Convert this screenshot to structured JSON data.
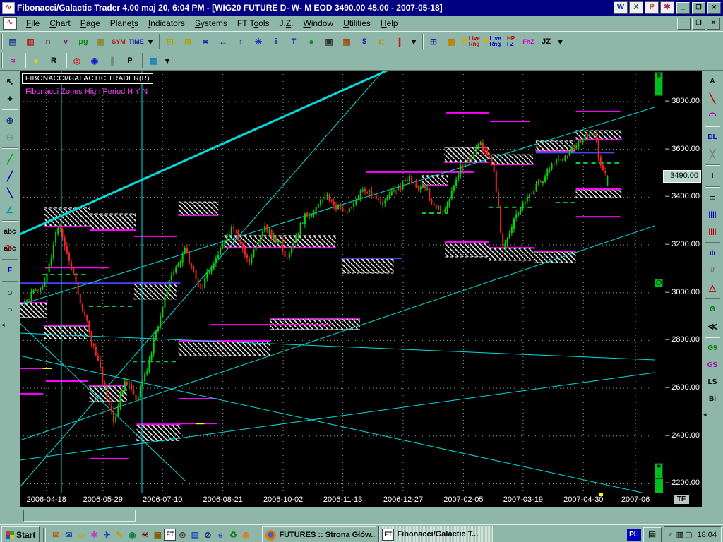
{
  "window": {
    "title": "Fibonacci/Galactic Trader 4.00 maj 20,  6:04 PM - [WIG20 FUTURE D- W- M EOD  3490.00     45.00 - 2007-05-18]",
    "controls": {
      "minimize": "_",
      "restore": "❐",
      "close": "✕"
    },
    "office_icons": [
      {
        "name": "word-icon",
        "letter": "W",
        "color": "#1a3c8f"
      },
      {
        "name": "excel-icon",
        "letter": "X",
        "color": "#1d7044"
      },
      {
        "name": "powerpoint-icon",
        "letter": "P",
        "color": "#c3432b"
      },
      {
        "name": "graphics-app-icon",
        "letter": "✱",
        "color": "#b03060"
      }
    ]
  },
  "menubar": {
    "items": [
      {
        "label": "File",
        "u": 0
      },
      {
        "label": "Chart",
        "u": 0
      },
      {
        "label": "Page",
        "u": 0
      },
      {
        "label": "Planets",
        "u": 5
      },
      {
        "label": "Indicators",
        "u": 0
      },
      {
        "label": "Systems",
        "u": 0
      },
      {
        "label": "FT Tools",
        "u": 4
      },
      {
        "label": "J.Z.",
        "u": 2
      },
      {
        "label": "Window",
        "u": 0
      },
      {
        "label": "Utilities",
        "u": 0
      },
      {
        "label": "Help",
        "u": 0
      }
    ],
    "mdi_controls": {
      "minimize": "─",
      "restore": "❐",
      "close": "✕"
    }
  },
  "toolbar_row1": [
    {
      "group": [
        {
          "name": "new-chart-icon",
          "glyph": "▤",
          "color": "#24418c"
        },
        {
          "name": "open-chart-icon",
          "glyph": "▥",
          "color": "#b02020"
        },
        {
          "name": "scale-n-icon",
          "label": "n",
          "color": "#8c1a1a"
        },
        {
          "name": "scale-v-icon",
          "label": "v",
          "color": "#7a1a8c"
        },
        {
          "name": "page-icon",
          "label": "pg",
          "color": "#108c10"
        },
        {
          "name": "quote-grid-icon",
          "glyph": "▦",
          "color": "#8c8c30"
        },
        {
          "name": "symbol-icon",
          "label": "SYM",
          "color": "#b02020"
        },
        {
          "name": "time-icon",
          "label": "TIME",
          "color": "#2020b0"
        },
        {
          "name": "more-tools-caret-icon",
          "glyph": "▾",
          "color": "#000000"
        }
      ]
    },
    {
      "group": [
        {
          "name": "cascade-windows-icon",
          "glyph": "⊡",
          "color": "#b0a000"
        },
        {
          "name": "new-window-icon",
          "glyph": "⊞",
          "color": "#b0a000"
        },
        {
          "name": "compress-bars-icon",
          "glyph": "≍",
          "color": "#2020b0"
        },
        {
          "name": "expand-bars-icon",
          "glyph": "↔",
          "color": "#2020b0"
        },
        {
          "name": "flip-chart-icon",
          "glyph": "↕",
          "color": "#2020b0"
        },
        {
          "name": "asterisk-icon",
          "glyph": "✳",
          "color": "#2020b0"
        },
        {
          "name": "info-icon",
          "label": "i",
          "color": "#2020b0"
        },
        {
          "name": "text-tool-icon",
          "label": "T",
          "color": "#2020b0"
        },
        {
          "name": "traffic-light-icon",
          "glyph": "●",
          "color": "#109010"
        },
        {
          "name": "print-icon",
          "glyph": "▣",
          "color": "#333333"
        },
        {
          "name": "data-calendar-icon",
          "glyph": "▦",
          "color": "#a05010"
        },
        {
          "name": "dollar-icon",
          "label": "$",
          "color": "#2020b0"
        },
        {
          "name": "ruler-icon",
          "glyph": "⊏",
          "color": "#b09000"
        },
        {
          "name": "candle-style-icon",
          "glyph": "❙",
          "color": "#b02020"
        },
        {
          "name": "candle-caret-icon",
          "glyph": "▾",
          "color": "#000000"
        }
      ]
    },
    {
      "group": [
        {
          "name": "chart-windows-icon",
          "glyph": "⊞",
          "color": "#2020b0"
        },
        {
          "name": "color-grid-icon",
          "glyph": "▦",
          "color": "#c08000"
        },
        {
          "name": "live-range-red-icon",
          "glyph": "⚑",
          "color": "#d0b000",
          "lines": [
            "Live",
            "Rng"
          ],
          "lines_colors": [
            "#c00000",
            "#c00000"
          ]
        },
        {
          "name": "live-range-blue-icon",
          "glyph": "⚑",
          "color": "#d0b000",
          "lines": [
            "Live",
            "Rng"
          ],
          "lines_colors": [
            "#0000c0",
            "#0000c0"
          ]
        },
        {
          "name": "hp-fz-icon",
          "lines": [
            "HP",
            "FZ"
          ],
          "lines_colors": [
            "#c00000",
            "#0000c0"
          ]
        },
        {
          "name": "fhz-icon",
          "label": "FhZ",
          "color": "#d000d0"
        },
        {
          "name": "jz-icon",
          "label": "JZ",
          "color": "#000000"
        },
        {
          "name": "jz-caret-icon",
          "glyph": "▾",
          "color": "#000000"
        }
      ]
    }
  ],
  "toolbar_row2": [
    {
      "group": [
        {
          "name": "biorhythm-icon",
          "glyph": "≈",
          "color": "#cc00cc"
        }
      ]
    },
    {
      "group": [
        {
          "name": "planet-line-icon",
          "glyph": "●",
          "color": "#d8d800"
        },
        {
          "name": "planet-r-icon",
          "label": "R",
          "color": "#000000"
        }
      ]
    },
    {
      "group": [
        {
          "name": "target-icon",
          "glyph": "◎",
          "color": "#cc2020"
        },
        {
          "name": "aspect-circle-icon",
          "glyph": "◉",
          "color": "#2020cc"
        },
        {
          "name": "aspect-lines-icon",
          "glyph": "∥",
          "color": "#777777"
        },
        {
          "name": "retrograde-icon",
          "label": "P",
          "color": "#000000"
        }
      ]
    },
    {
      "group": [
        {
          "name": "grid-style-icon",
          "glyph": "▦",
          "color": "#2080c0"
        },
        {
          "name": "grid-caret-icon",
          "glyph": "▾",
          "color": "#000000"
        }
      ]
    }
  ],
  "left_toolbar": {
    "items": [
      {
        "name": "pointer-icon",
        "glyph": "↖",
        "color": "#000000"
      },
      {
        "name": "crosshair-icon",
        "glyph": "+",
        "color": "#000000"
      },
      {
        "name": "zoom-in-icon",
        "glyph": "⊕",
        "color": "#204080"
      },
      {
        "name": "zoom-out-icon",
        "glyph": "⊖",
        "color": "#607060",
        "disabled": true
      },
      {
        "name": "trend-line-green-icon",
        "glyph": "╱",
        "color": "#00b000"
      },
      {
        "name": "trend-line-blue-icon",
        "glyph": "╱",
        "color": "#0000c0"
      },
      {
        "name": "trend-line-down-icon",
        "glyph": "╲",
        "color": "#0000c0"
      },
      {
        "name": "angle-tool-icon",
        "glyph": "∠",
        "color": "#00a0a0"
      },
      {
        "name": "text-label-icon",
        "label": "abc",
        "color": "#000000"
      },
      {
        "name": "delete-text-icon",
        "label": "abc",
        "color": "#000000",
        "strike": true
      },
      {
        "name": "fibonacci-tool-icon",
        "label": "F",
        "color": "#0000c0"
      },
      {
        "name": "circle-tool-icon",
        "glyph": "○",
        "color": "#000000"
      },
      {
        "name": "ellipse-tool-icon",
        "glyph": "○",
        "color": "#000000",
        "squash": true
      }
    ],
    "scroll_arrow": "◂"
  },
  "right_toolbar": {
    "items": [
      {
        "name": "angles-a-icon",
        "label": "A",
        "color": "#000000"
      },
      {
        "name": "trend-pencil-icon",
        "glyph": "╲",
        "color": "#c00000"
      },
      {
        "name": "arc-tool-icon",
        "glyph": "◠",
        "color": "#c000c0"
      },
      {
        "name": "dl-tool-icon",
        "label": "DL",
        "color": "#0000c0"
      },
      {
        "name": "delete-line-icon",
        "glyph": "╳",
        "color": "#808080"
      },
      {
        "name": "info-line-icon",
        "label": "I",
        "color": "#000000"
      },
      {
        "name": "horizontal-lines-icon",
        "glyph": "≡",
        "color": "#000000"
      },
      {
        "name": "vertical-lines-blue-icon",
        "label": "||||",
        "color": "#0000c0"
      },
      {
        "name": "vertical-lines-red-icon",
        "label": "||||",
        "color": "#c00000"
      },
      {
        "name": "histogram-icon",
        "label": "ılı",
        "color": "#0000c0"
      },
      {
        "name": "parallel-lines-icon",
        "label": "//",
        "color": "#707070"
      },
      {
        "name": "triangle-tool-icon",
        "glyph": "△",
        "color": "#c00000"
      },
      {
        "name": "gann-levels-icon",
        "label": "G",
        "color": "#008000"
      },
      {
        "name": "fan-lines-icon",
        "glyph": "≪",
        "color": "#000000"
      },
      {
        "name": "g9-icon",
        "label": "G9",
        "color": "#008000"
      },
      {
        "name": "gs-icon",
        "label": "GS",
        "color": "#a000a0"
      },
      {
        "name": "ls-icon",
        "label": "LS",
        "color": "#000000"
      },
      {
        "name": "bi-icon",
        "label": "Bi",
        "color": "#000000"
      }
    ],
    "scroll_arrow": "◂"
  },
  "chart": {
    "overlay_title": "FIBONACCI/GALACTIC TRADER(R)",
    "overlay_subtitle": "Fibonacci Zones High Period H Y N",
    "tf_label": "TF"
  },
  "scrollbar": {
    "top_buttons": [
      "⊠",
      "↑",
      "↕"
    ],
    "middle_button": "◯",
    "bottom_buttons": [
      "✱",
      "↓"
    ]
  },
  "chart_data": {
    "type": "candlestick",
    "symbol": "WIG20 FUTURE",
    "last_price": 3490.0,
    "change": 45.0,
    "last_date": "2007-05-18",
    "price_top": 3930,
    "price_bottom": 2160,
    "y_ticks": [
      3800,
      3600,
      3400,
      3200,
      3000,
      2800,
      2600,
      2400,
      2200
    ],
    "current_price": 3490.0,
    "x_ticks": [
      {
        "label": "2006-04-18",
        "f": 0.042
      },
      {
        "label": "2006-05-29",
        "f": 0.131
      },
      {
        "label": "2006-07-10",
        "f": 0.225
      },
      {
        "label": "2006-08-21",
        "f": 0.32
      },
      {
        "label": "2006-10-02",
        "f": 0.415
      },
      {
        "label": "2006-11-13",
        "f": 0.509
      },
      {
        "label": "2006-12-27",
        "f": 0.604
      },
      {
        "label": "2007-02-05",
        "f": 0.699
      },
      {
        "label": "2007-03-19",
        "f": 0.793
      },
      {
        "label": "2007-04-30",
        "f": 0.888
      },
      {
        "label": "2007-06",
        "f": 0.97
      }
    ],
    "seed": 20070518,
    "anchors": [
      [
        0,
        2960
      ],
      [
        10,
        3080
      ],
      [
        15,
        3290
      ],
      [
        22,
        3050
      ],
      [
        27,
        2890
      ],
      [
        33,
        2700
      ],
      [
        40,
        2460
      ],
      [
        45,
        2640
      ],
      [
        50,
        2550
      ],
      [
        57,
        2760
      ],
      [
        65,
        3060
      ],
      [
        72,
        3180
      ],
      [
        78,
        3000
      ],
      [
        85,
        3140
      ],
      [
        93,
        3280
      ],
      [
        100,
        3120
      ],
      [
        108,
        3270
      ],
      [
        115,
        3200
      ],
      [
        118,
        3130
      ],
      [
        125,
        3320
      ],
      [
        135,
        3390
      ],
      [
        145,
        3330
      ],
      [
        152,
        3450
      ],
      [
        160,
        3360
      ],
      [
        172,
        3480
      ],
      [
        180,
        3420
      ],
      [
        188,
        3330
      ],
      [
        195,
        3520
      ],
      [
        205,
        3620
      ],
      [
        210,
        3540
      ],
      [
        215,
        3180
      ],
      [
        222,
        3360
      ],
      [
        230,
        3460
      ],
      [
        240,
        3570
      ],
      [
        250,
        3640
      ],
      [
        256,
        3680
      ],
      [
        259,
        3520
      ],
      [
        262,
        3490
      ]
    ],
    "zones": [
      [
        0.039,
        0.111,
        3280,
        3354,
        "bottom"
      ],
      [
        0.111,
        0.183,
        3265,
        3330,
        "bottom"
      ],
      [
        0.0,
        0.042,
        2896,
        2955,
        "top"
      ],
      [
        0.039,
        0.109,
        2807,
        2860,
        "top"
      ],
      [
        0.109,
        0.169,
        2544,
        2609,
        "top"
      ],
      [
        0.184,
        0.253,
        2381,
        2446,
        "top"
      ],
      [
        0.18,
        0.247,
        2973,
        3038,
        "top"
      ],
      [
        0.25,
        0.313,
        3327,
        3380,
        "bottom"
      ],
      [
        0.322,
        0.498,
        3191,
        3239,
        "bottom"
      ],
      [
        0.25,
        0.394,
        2736,
        2795,
        "top"
      ],
      [
        0.394,
        0.536,
        2846,
        2890,
        "top"
      ],
      [
        0.507,
        0.589,
        3082,
        3141,
        "top"
      ],
      [
        0.633,
        0.674,
        3451,
        3490,
        "bottom"
      ],
      [
        0.669,
        0.739,
        3549,
        3608,
        "bottom"
      ],
      [
        0.744,
        0.809,
        3540,
        3578,
        "bottom"
      ],
      [
        0.813,
        0.874,
        3593,
        3635,
        "bottom"
      ],
      [
        0.876,
        0.948,
        3643,
        3679,
        "bottom"
      ],
      [
        0.876,
        0.948,
        3398,
        3431,
        "top"
      ],
      [
        0.67,
        0.739,
        3150,
        3209,
        "top"
      ],
      [
        0.739,
        0.811,
        3135,
        3185,
        "top"
      ],
      [
        0.811,
        0.876,
        3126,
        3171,
        "top"
      ]
    ],
    "magenta_levels": [
      [
        0.0,
        0.037,
        2683
      ],
      [
        0.041,
        0.108,
        2630
      ],
      [
        0.0,
        0.037,
        2577
      ],
      [
        0.111,
        0.171,
        2305
      ],
      [
        0.25,
        0.311,
        2452
      ],
      [
        0.25,
        0.311,
        2556
      ],
      [
        0.672,
        0.739,
        3753
      ],
      [
        0.741,
        0.804,
        3717
      ],
      [
        0.876,
        0.946,
        3759
      ],
      [
        0.876,
        0.946,
        3318
      ],
      [
        0.18,
        0.247,
        3236
      ],
      [
        0.04,
        0.14,
        3105
      ],
      [
        0.545,
        0.715,
        3505
      ],
      [
        0.3,
        0.49,
        2866
      ]
    ],
    "green_dashed_levels": [
      [
        0.036,
        0.109,
        3076
      ],
      [
        0.109,
        0.178,
        2943
      ],
      [
        0.178,
        0.25,
        2712
      ],
      [
        0.633,
        0.674,
        3333
      ],
      [
        0.739,
        0.811,
        3357
      ],
      [
        0.876,
        0.946,
        3543
      ],
      [
        0.844,
        0.878,
        3377
      ]
    ],
    "blue_levels": [
      [
        0.813,
        0.937,
        3586
      ],
      [
        0.0,
        0.253,
        3040
      ],
      [
        0.507,
        0.602,
        3144
      ]
    ],
    "yellow_levels": [
      [
        0.277,
        0.291,
        2452
      ],
      [
        0.036,
        0.05,
        2683
      ]
    ],
    "trend_lines": [
      [
        0,
        232,
        520,
        0,
        3
      ],
      [
        0,
        332,
        899,
        52,
        1
      ],
      [
        0,
        372,
        899,
        410,
        1
      ],
      [
        0,
        404,
        899,
        602,
        1
      ],
      [
        0,
        552,
        899,
        428,
        1
      ],
      [
        0,
        524,
        899,
        220,
        1
      ],
      [
        0,
        590,
        515,
        0,
        1
      ],
      [
        0,
        358,
        235,
        582,
        1
      ]
    ],
    "vertical_lines": [
      59,
      173
    ],
    "axis_marker_f": 0.915,
    "colors": {
      "up": "#00d900",
      "down": "#ff2222",
      "grid": "#8e9e9a",
      "hatch": "#ffffff",
      "magenta": "#ff00ff",
      "green_dash": "#00cc33",
      "blue": "#4444ff",
      "cyan": "#00dcdc",
      "yellow": "#ffff00",
      "background": "#000000"
    }
  },
  "taskbar": {
    "start_label": "Start",
    "quicklaunch": [
      {
        "name": "outlook-icon",
        "glyph": "✉",
        "color": "#c06000"
      },
      {
        "name": "mail-icon",
        "glyph": "✉",
        "color": "#2050a0"
      },
      {
        "name": "folder-icon",
        "glyph": "▱",
        "color": "#c8a020"
      },
      {
        "name": "media-player-icon",
        "glyph": "✱",
        "color": "#c040c0"
      },
      {
        "name": "bird-icon",
        "glyph": "✈",
        "color": "#2040c0"
      },
      {
        "name": "paint-icon",
        "glyph": "✎",
        "color": "#c0a000"
      },
      {
        "name": "globe-icon",
        "glyph": "◉",
        "color": "#108040"
      },
      {
        "name": "spider-icon",
        "glyph": "✳",
        "color": "#801010"
      },
      {
        "name": "camera-icon",
        "glyph": "▣",
        "color": "#806000"
      },
      {
        "name": "ft-app-icon",
        "glyph": "FT",
        "color": "#000000"
      },
      {
        "name": "clock-icon",
        "glyph": "⊙",
        "color": "#404040"
      },
      {
        "name": "notes-icon",
        "glyph": "▤",
        "color": "#2050c0"
      },
      {
        "name": "msn-icon",
        "glyph": "⊘",
        "color": "#102060"
      },
      {
        "name": "ie-icon",
        "glyph": "e",
        "color": "#2060c0"
      },
      {
        "name": "recycle-icon",
        "glyph": "♻",
        "color": "#108020"
      },
      {
        "name": "firefox-icon",
        "glyph": "◍",
        "color": "#e07818"
      }
    ],
    "tasks": [
      {
        "name": "task-futures",
        "label": "FUTURES :: Strona Głów...",
        "icon": "firefox",
        "active": false
      },
      {
        "name": "task-fibonacci",
        "label": "Fibonacci/Galactic T...",
        "icon": "ft",
        "active": true
      }
    ],
    "tray": {
      "language": "PL",
      "keyboard_glyph": "▤",
      "collapse": "«",
      "status_glyphs": [
        "▥",
        "▢"
      ],
      "clock": "18:04"
    }
  }
}
